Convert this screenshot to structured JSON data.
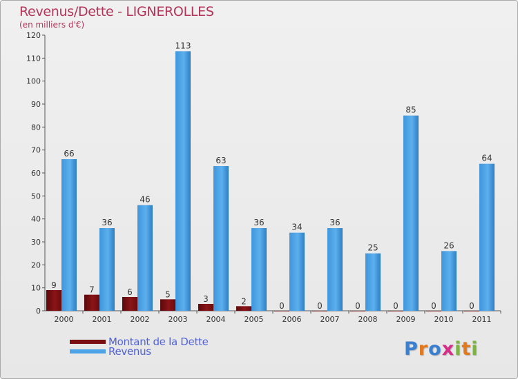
{
  "chart_data": {
    "type": "bar",
    "title": "Revenus/Dette - LIGNEROLLES",
    "subtitle": "(en milliers d'€)",
    "categories": [
      "2000",
      "2001",
      "2002",
      "2003",
      "2004",
      "2005",
      "2006",
      "2007",
      "2008",
      "2009",
      "2010",
      "2011"
    ],
    "series": [
      {
        "name": "Montant de la Dette",
        "color": "#7a0f12",
        "values": [
          9,
          7,
          6,
          5,
          3,
          2,
          0,
          0,
          0,
          0,
          0,
          0
        ]
      },
      {
        "name": "Revenus",
        "color": "#4da3e6",
        "values": [
          66,
          36,
          46,
          113,
          63,
          36,
          34,
          36,
          25,
          85,
          26,
          64
        ]
      }
    ],
    "ylim": [
      0,
      120
    ],
    "yticks": [
      0,
      10,
      20,
      30,
      40,
      50,
      60,
      70,
      80,
      90,
      100,
      110,
      120
    ],
    "grid": false,
    "legend_position": "bottom-left"
  },
  "logo": {
    "text": "Proxiti",
    "letters": [
      "P",
      "r",
      "o",
      "x",
      "i",
      "t",
      "i"
    ],
    "colors": [
      "#3b7fd1",
      "#e4781c",
      "#3b7fd1",
      "#d92b8a",
      "#7cb442",
      "#e4781c",
      "#7cb442"
    ]
  }
}
